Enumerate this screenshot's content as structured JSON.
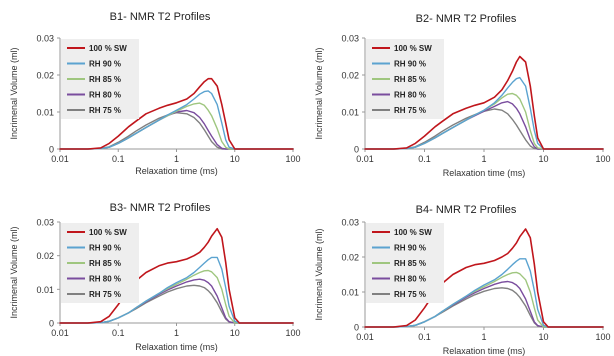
{
  "chart_data": [
    {
      "type": "line",
      "title": "B1- NMR T2 Profiles",
      "xlabel": "Relaxation time (ms)",
      "ylabel": "Incrimenal Volume (ml)",
      "x_scale": "log",
      "xlim": [
        0.01,
        100
      ],
      "ylim": [
        0,
        0.03
      ],
      "x_ticks": [
        "0.01",
        "0.1",
        "1",
        "10",
        "100"
      ],
      "y_ticks": [
        "0",
        "0.01",
        "0.02",
        "0.03"
      ],
      "legend_position": "top-left",
      "x": [
        0.01,
        0.03,
        0.05,
        0.07,
        0.1,
        0.15,
        0.2,
        0.3,
        0.5,
        0.7,
        1,
        1.5,
        2,
        2.5,
        3,
        3.5,
        4,
        5,
        6,
        7,
        8,
        10,
        12,
        15,
        20,
        100
      ],
      "series": [
        {
          "name": "100 % SW",
          "values": [
            0,
            0,
            0.0003,
            0.0015,
            0.0035,
            0.006,
            0.0075,
            0.0095,
            0.011,
            0.0118,
            0.0125,
            0.0135,
            0.015,
            0.0168,
            0.0182,
            0.019,
            0.019,
            0.017,
            0.012,
            0.007,
            0.0025,
            0,
            0,
            0,
            0,
            0
          ]
        },
        {
          "name": "RH 90 %",
          "values": [
            0,
            0,
            0.0001,
            0.0005,
            0.0015,
            0.003,
            0.0042,
            0.0058,
            0.0078,
            0.0092,
            0.0105,
            0.012,
            0.0135,
            0.0148,
            0.0155,
            0.0157,
            0.015,
            0.012,
            0.007,
            0.0025,
            0.0005,
            0,
            0,
            0,
            0,
            0
          ]
        },
        {
          "name": "RH 85 %",
          "values": [
            0,
            0,
            0.0001,
            0.0005,
            0.0015,
            0.003,
            0.0042,
            0.0058,
            0.0078,
            0.009,
            0.0102,
            0.0115,
            0.0122,
            0.0124,
            0.0118,
            0.0105,
            0.009,
            0.0055,
            0.002,
            0.0005,
            0,
            0,
            0,
            0,
            0,
            0
          ]
        },
        {
          "name": "RH 80 %",
          "values": [
            0,
            0,
            0.0001,
            0.0005,
            0.0015,
            0.003,
            0.0042,
            0.0058,
            0.0078,
            0.009,
            0.01,
            0.0104,
            0.0098,
            0.0085,
            0.0068,
            0.005,
            0.0035,
            0.0012,
            0.0002,
            0,
            0,
            0,
            0,
            0,
            0,
            0
          ]
        },
        {
          "name": "RH 75 %",
          "values": [
            0,
            0,
            0.0001,
            0.0006,
            0.0018,
            0.0035,
            0.0048,
            0.0065,
            0.0083,
            0.0092,
            0.0098,
            0.0095,
            0.0085,
            0.007,
            0.0052,
            0.0035,
            0.002,
            0.0005,
            0,
            0,
            0,
            0,
            0,
            0,
            0,
            0
          ]
        }
      ]
    },
    {
      "type": "line",
      "title": "B2- NMR T2 Profiles",
      "xlabel": "Relaxation time (ms)",
      "ylabel": "Incrimenal Volume (ml)",
      "x_scale": "log",
      "xlim": [
        0.01,
        100
      ],
      "ylim": [
        0,
        0.03
      ],
      "x_ticks": [
        "0.01",
        "0.1",
        "1",
        "10",
        "100"
      ],
      "y_ticks": [
        "0",
        "0.01",
        "0.02",
        "0.03"
      ],
      "legend_position": "top-left",
      "x": [
        0.01,
        0.03,
        0.05,
        0.07,
        0.1,
        0.15,
        0.2,
        0.3,
        0.5,
        0.7,
        1,
        1.5,
        2,
        2.5,
        3,
        3.5,
        4,
        5,
        6,
        7,
        8,
        10,
        12,
        15,
        20,
        100
      ],
      "series": [
        {
          "name": "100 % SW",
          "values": [
            0,
            0,
            0.0003,
            0.0015,
            0.0035,
            0.006,
            0.0075,
            0.0095,
            0.011,
            0.0118,
            0.0125,
            0.014,
            0.016,
            0.0185,
            0.021,
            0.0235,
            0.025,
            0.0235,
            0.017,
            0.009,
            0.003,
            0,
            0,
            0,
            0,
            0
          ]
        },
        {
          "name": "RH 90 %",
          "values": [
            0,
            0,
            0.0001,
            0.0005,
            0.0015,
            0.003,
            0.0042,
            0.0058,
            0.0078,
            0.0092,
            0.0105,
            0.0125,
            0.0145,
            0.0165,
            0.018,
            0.019,
            0.0193,
            0.017,
            0.011,
            0.005,
            0.0015,
            0,
            0,
            0,
            0,
            0
          ]
        },
        {
          "name": "RH 85 %",
          "values": [
            0,
            0,
            0.0001,
            0.0005,
            0.0015,
            0.003,
            0.0042,
            0.0058,
            0.0078,
            0.0092,
            0.0105,
            0.0122,
            0.0138,
            0.0148,
            0.015,
            0.0145,
            0.0135,
            0.01,
            0.005,
            0.0015,
            0.0003,
            0,
            0,
            0,
            0,
            0
          ]
        },
        {
          "name": "RH 80 %",
          "values": [
            0,
            0,
            0.0001,
            0.0005,
            0.0015,
            0.003,
            0.0042,
            0.0058,
            0.0078,
            0.009,
            0.0102,
            0.0115,
            0.0125,
            0.0128,
            0.0122,
            0.011,
            0.0095,
            0.006,
            0.0025,
            0.0006,
            0,
            0,
            0,
            0,
            0,
            0
          ]
        },
        {
          "name": "RH 75 %",
          "values": [
            0,
            0,
            0.0001,
            0.0006,
            0.0018,
            0.0035,
            0.0048,
            0.0065,
            0.0083,
            0.0093,
            0.0102,
            0.0108,
            0.0105,
            0.0095,
            0.008,
            0.0065,
            0.005,
            0.0025,
            0.0008,
            0.0001,
            0,
            0,
            0,
            0,
            0,
            0
          ]
        }
      ]
    },
    {
      "type": "line",
      "title": "B3- NMR T2 Profiles",
      "xlabel": "Relaxation time (ms)",
      "ylabel": "Incrimenal Volume (ml)",
      "x_scale": "log",
      "xlim": [
        0.01,
        100
      ],
      "ylim": [
        0,
        0.03
      ],
      "x_ticks": [
        "0.01",
        "0.1",
        "1",
        "10",
        "100"
      ],
      "y_ticks": [
        "0",
        "0.01",
        "0.02",
        "0.03"
      ],
      "legend_position": "top-left",
      "x": [
        0.01,
        0.03,
        0.05,
        0.07,
        0.1,
        0.15,
        0.2,
        0.3,
        0.5,
        0.7,
        1,
        1.5,
        2,
        2.5,
        3,
        3.5,
        4,
        5,
        6,
        7,
        8,
        10,
        12,
        15,
        20,
        100
      ],
      "series": [
        {
          "name": "100 % SW",
          "values": [
            0,
            0,
            0.0004,
            0.002,
            0.0055,
            0.01,
            0.0125,
            0.015,
            0.017,
            0.0178,
            0.0182,
            0.019,
            0.02,
            0.021,
            0.0225,
            0.024,
            0.0258,
            0.028,
            0.0255,
            0.018,
            0.01,
            0.0015,
            0,
            0,
            0,
            0
          ]
        },
        {
          "name": "RH 90 %",
          "values": [
            0,
            0,
            0.0001,
            0.0005,
            0.0015,
            0.003,
            0.0045,
            0.0065,
            0.0088,
            0.0105,
            0.012,
            0.0135,
            0.015,
            0.0165,
            0.0178,
            0.0188,
            0.0195,
            0.0195,
            0.016,
            0.0105,
            0.005,
            0.0005,
            0,
            0,
            0,
            0
          ]
        },
        {
          "name": "RH 85 %",
          "values": [
            0,
            0,
            0.0001,
            0.0005,
            0.0015,
            0.003,
            0.0045,
            0.0065,
            0.0088,
            0.0102,
            0.0115,
            0.013,
            0.0142,
            0.015,
            0.0155,
            0.0156,
            0.0152,
            0.0135,
            0.01,
            0.0055,
            0.002,
            0,
            0,
            0,
            0,
            0
          ]
        },
        {
          "name": "RH 80 %",
          "values": [
            0,
            0,
            0.0001,
            0.0005,
            0.0015,
            0.003,
            0.0045,
            0.0063,
            0.0085,
            0.0098,
            0.011,
            0.0122,
            0.0128,
            0.013,
            0.0127,
            0.012,
            0.011,
            0.008,
            0.0045,
            0.0015,
            0.0004,
            0,
            0,
            0,
            0,
            0
          ]
        },
        {
          "name": "RH 75 %",
          "values": [
            0,
            0,
            0.0001,
            0.0005,
            0.0015,
            0.003,
            0.0042,
            0.006,
            0.008,
            0.0092,
            0.0102,
            0.011,
            0.0112,
            0.011,
            0.0105,
            0.0096,
            0.0085,
            0.006,
            0.0033,
            0.0012,
            0.0003,
            0,
            0,
            0,
            0,
            0
          ]
        }
      ]
    },
    {
      "type": "line",
      "title": "B4- NMR T2 Profiles",
      "xlabel": "Relaxation time (ms)",
      "ylabel": "Incrimenal Volume (ml)",
      "x_scale": "log",
      "xlim": [
        0.01,
        100
      ],
      "ylim": [
        0,
        0.03
      ],
      "x_ticks": [
        "0.01",
        "0.1",
        "1",
        "10",
        "100"
      ],
      "y_ticks": [
        "0",
        "0.01",
        "0.02",
        "0.03"
      ],
      "legend_position": "top-left",
      "x": [
        0.01,
        0.03,
        0.05,
        0.07,
        0.1,
        0.15,
        0.2,
        0.3,
        0.5,
        0.7,
        1,
        1.5,
        2,
        2.5,
        3,
        3.5,
        4,
        5,
        6,
        7,
        8,
        10,
        12,
        15,
        20,
        100
      ],
      "series": [
        {
          "name": "100 % SW",
          "values": [
            0,
            0,
            0.0004,
            0.002,
            0.0055,
            0.01,
            0.0125,
            0.015,
            0.017,
            0.0178,
            0.0182,
            0.019,
            0.02,
            0.021,
            0.0225,
            0.024,
            0.0258,
            0.028,
            0.0255,
            0.018,
            0.01,
            0.0015,
            0,
            0,
            0,
            0
          ]
        },
        {
          "name": "RH 90 %",
          "values": [
            0,
            0,
            0.0001,
            0.0005,
            0.0015,
            0.003,
            0.0045,
            0.0065,
            0.0088,
            0.0105,
            0.012,
            0.0135,
            0.015,
            0.0165,
            0.0178,
            0.0188,
            0.0195,
            0.0195,
            0.016,
            0.0105,
            0.005,
            0.0005,
            0,
            0,
            0,
            0
          ]
        },
        {
          "name": "RH 85 %",
          "values": [
            0,
            0,
            0.0001,
            0.0005,
            0.0015,
            0.003,
            0.0045,
            0.0065,
            0.0088,
            0.0102,
            0.0115,
            0.013,
            0.0142,
            0.015,
            0.0155,
            0.0156,
            0.0152,
            0.0135,
            0.01,
            0.0055,
            0.002,
            0,
            0,
            0,
            0,
            0
          ]
        },
        {
          "name": "RH 80 %",
          "values": [
            0,
            0,
            0.0001,
            0.0005,
            0.0015,
            0.003,
            0.0045,
            0.0063,
            0.0085,
            0.0098,
            0.011,
            0.0122,
            0.0128,
            0.013,
            0.0127,
            0.012,
            0.011,
            0.008,
            0.0045,
            0.0015,
            0.0004,
            0,
            0,
            0,
            0,
            0
          ]
        },
        {
          "name": "RH 75 %",
          "values": [
            0,
            0,
            0.0001,
            0.0005,
            0.0015,
            0.003,
            0.0042,
            0.006,
            0.008,
            0.0092,
            0.0102,
            0.011,
            0.0112,
            0.011,
            0.0105,
            0.0096,
            0.0085,
            0.006,
            0.0033,
            0.0012,
            0.0003,
            0,
            0,
            0,
            0,
            0
          ]
        }
      ]
    }
  ],
  "series_colors": [
    "#c0161c",
    "#5ba3d0",
    "#9fc67f",
    "#7a4d9e",
    "#808080"
  ],
  "legend_box_color": "#eeeeee",
  "axis_color": "#999999"
}
